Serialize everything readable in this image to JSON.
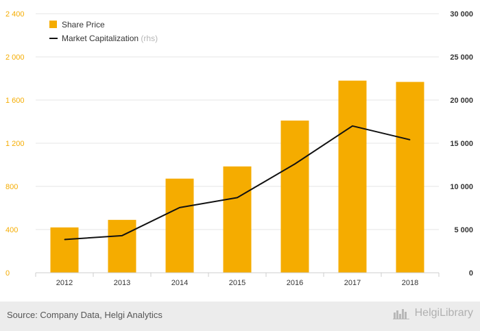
{
  "chart_data": {
    "type": "bar",
    "categories": [
      "2012",
      "2013",
      "2014",
      "2015",
      "2016",
      "2017",
      "2018"
    ],
    "series": [
      {
        "name": "Share Price",
        "type": "bar",
        "axis": "left",
        "values": [
          420,
          490,
          872,
          985,
          1410,
          1780,
          1768
        ],
        "color": "#f5ac00"
      },
      {
        "name": "Market Capitalization",
        "type": "line",
        "axis": "right",
        "values": [
          3850,
          4300,
          7550,
          8700,
          12600,
          17000,
          15400
        ],
        "color": "#111111"
      }
    ],
    "ylim_left": [
      0,
      2400
    ],
    "yticks_left": [
      0,
      400,
      800,
      1200,
      1600,
      2000,
      2400
    ],
    "ytick_labels_left": [
      "0",
      "400",
      "800",
      "1 200",
      "1 600",
      "2 000",
      "2 400"
    ],
    "ylim_right": [
      0,
      30000
    ],
    "yticks_right": [
      0,
      5000,
      10000,
      15000,
      20000,
      25000,
      30000
    ],
    "ytick_labels_right": [
      "0",
      "5 000",
      "10 000",
      "15 000",
      "20 000",
      "25 000",
      "30 000"
    ],
    "legend": {
      "position": "top-left",
      "items": [
        {
          "label": "Share Price",
          "marker": "square"
        },
        {
          "label": "Market Capitalization",
          "marker": "line",
          "suffix": "(rhs)"
        }
      ]
    },
    "grid": true
  },
  "colors": {
    "left_axis_text": "#f5ac00",
    "right_axis_text": "#333333",
    "grid": "#e6e6e6"
  },
  "footer": {
    "source": "Source: Company Data, Helgi Analytics",
    "brand": "HelgiLibrary",
    "brand_icon": "library-logo-icon"
  }
}
